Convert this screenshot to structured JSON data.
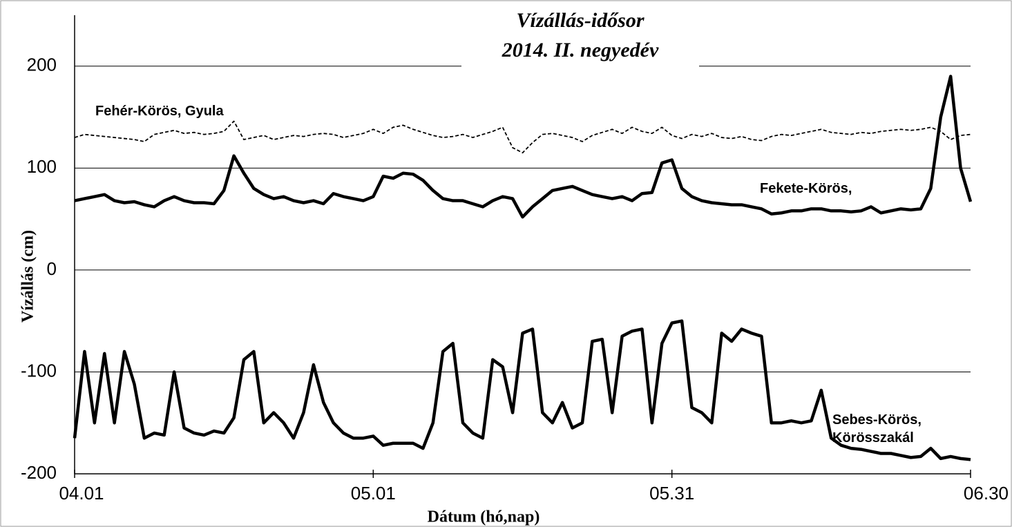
{
  "chart_data": {
    "type": "line",
    "title": "Vízállás-idősor",
    "subtitle": "2014. II. negyedév",
    "x_label": "Dátum (hó,nap)",
    "y_label": "Vízállás (cm)",
    "x": [
      0,
      1,
      2,
      3,
      4,
      5,
      6,
      7,
      8,
      9,
      10,
      11,
      12,
      13,
      14,
      15,
      16,
      17,
      18,
      19,
      20,
      21,
      22,
      23,
      24,
      25,
      26,
      27,
      28,
      29,
      30,
      31,
      32,
      33,
      34,
      35,
      36,
      37,
      38,
      39,
      40,
      41,
      42,
      43,
      44,
      45,
      46,
      47,
      48,
      49,
      50,
      51,
      52,
      53,
      54,
      55,
      56,
      57,
      58,
      59,
      60,
      61,
      62,
      63,
      64,
      65,
      66,
      67,
      68,
      69,
      70,
      71,
      72,
      73,
      74,
      75,
      76,
      77,
      78,
      79,
      80,
      81,
      82,
      83,
      84,
      85,
      86,
      87,
      88,
      89,
      90
    ],
    "xlim": [
      0,
      90
    ],
    "xticks": [
      {
        "value": 0,
        "label": "04.01"
      },
      {
        "value": 30,
        "label": "05.01"
      },
      {
        "value": 60,
        "label": "05.31"
      },
      {
        "value": 90,
        "label": "06.30"
      }
    ],
    "ylim": [
      -200,
      250
    ],
    "yticks": [
      -200,
      -100,
      0,
      100,
      200
    ],
    "grid": true,
    "series": [
      {
        "name": "Fehér-Körös, Gyula",
        "color": "#000000",
        "style": "dashed",
        "values": [
          130,
          133,
          132,
          131,
          130,
          129,
          128,
          126,
          133,
          135,
          137,
          134,
          135,
          133,
          134,
          136,
          146,
          128,
          130,
          132,
          128,
          130,
          132,
          131,
          133,
          134,
          133,
          130,
          132,
          134,
          138,
          134,
          140,
          142,
          138,
          135,
          132,
          130,
          131,
          133,
          130,
          133,
          136,
          140,
          120,
          115,
          125,
          133,
          134,
          132,
          130,
          126,
          132,
          135,
          138,
          134,
          140,
          136,
          134,
          140,
          132,
          129,
          133,
          131,
          134,
          130,
          129,
          131,
          128,
          127,
          131,
          133,
          132,
          134,
          136,
          138,
          135,
          134,
          133,
          135,
          134,
          136,
          137,
          138,
          137,
          138,
          140,
          136,
          128,
          132,
          133
        ]
      },
      {
        "name": "Fekete-Körös,",
        "color": "#000000",
        "style": "solid",
        "values": [
          68,
          70,
          72,
          74,
          68,
          66,
          67,
          64,
          62,
          68,
          72,
          68,
          66,
          66,
          65,
          78,
          112,
          95,
          80,
          74,
          70,
          72,
          68,
          66,
          68,
          65,
          75,
          72,
          70,
          68,
          72,
          92,
          90,
          95,
          94,
          88,
          78,
          70,
          68,
          68,
          65,
          62,
          68,
          72,
          70,
          52,
          62,
          70,
          78,
          80,
          82,
          78,
          74,
          72,
          70,
          72,
          68,
          75,
          76,
          105,
          108,
          80,
          72,
          68,
          66,
          65,
          64,
          64,
          62,
          60,
          55,
          56,
          58,
          58,
          60,
          60,
          58,
          58,
          57,
          58,
          62,
          56,
          58,
          60,
          59,
          60,
          80,
          150,
          190,
          100,
          67
        ]
      },
      {
        "name": "Sebes-Körös, Körösszakál",
        "color": "#000000",
        "style": "solid",
        "values": [
          -165,
          -80,
          -150,
          -82,
          -150,
          -80,
          -112,
          -165,
          -160,
          -162,
          -100,
          -155,
          -160,
          -162,
          -158,
          -160,
          -145,
          -88,
          -80,
          -150,
          -140,
          -150,
          -165,
          -140,
          -93,
          -130,
          -150,
          -160,
          -165,
          -165,
          -163,
          -172,
          -170,
          -170,
          -170,
          -175,
          -150,
          -80,
          -72,
          -150,
          -160,
          -165,
          -88,
          -95,
          -140,
          -62,
          -58,
          -140,
          -150,
          -130,
          -155,
          -150,
          -70,
          -68,
          -140,
          -65,
          -60,
          -58,
          -150,
          -72,
          -52,
          -50,
          -135,
          -140,
          -150,
          -62,
          -70,
          -58,
          -62,
          -65,
          -150,
          -150,
          -148,
          -150,
          -148,
          -118,
          -165,
          -172,
          -175,
          -176,
          -178,
          -180,
          -180,
          -182,
          -184,
          -183,
          -175,
          -185,
          -183,
          -185,
          -186
        ]
      }
    ]
  }
}
